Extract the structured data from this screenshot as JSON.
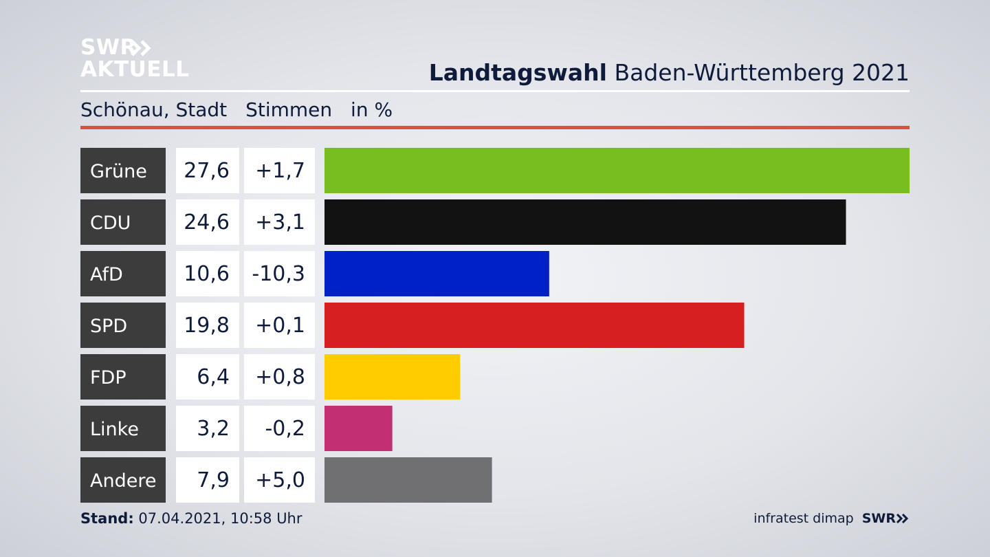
{
  "brand": {
    "logo_line1": "SWR",
    "logo_line2": "AKTUELL",
    "footer_logo": "SWR"
  },
  "header": {
    "title_bold": "Landtagswahl",
    "title_rest": "Baden-Württemberg 2021",
    "location": "Schönau, Stadt",
    "metric": "Stimmen",
    "unit": "in %"
  },
  "colors": {
    "accent_rule": "#d7533c",
    "label_bg": "#3c3c3c"
  },
  "chart_data": {
    "type": "bar",
    "orientation": "horizontal",
    "title": "Landtagswahl Baden-Württemberg 2021",
    "subtitle": "Schönau, Stadt Stimmen in %",
    "categories": [
      "Grüne",
      "CDU",
      "AfD",
      "SPD",
      "FDP",
      "Linke",
      "Andere"
    ],
    "values": [
      27.6,
      24.6,
      10.6,
      19.8,
      6.4,
      3.2,
      7.9
    ],
    "value_labels": [
      "27,6",
      "24,6",
      "10,6",
      "19,8",
      "6,4",
      "3,2",
      "7,9"
    ],
    "changes": [
      "+1,7",
      "+3,1",
      "-10,3",
      "+0,1",
      "+0,8",
      "-0,2",
      "+5,0"
    ],
    "bar_colors": [
      "#78be1e",
      "#121212",
      "#0021c8",
      "#d51f20",
      "#ffcc00",
      "#c03073",
      "#707073"
    ],
    "xlim": [
      0,
      27.6
    ]
  },
  "footer": {
    "stand_label": "Stand:",
    "stand_value": "07.04.2021, 10:58 Uhr",
    "source": "infratest dimap"
  }
}
